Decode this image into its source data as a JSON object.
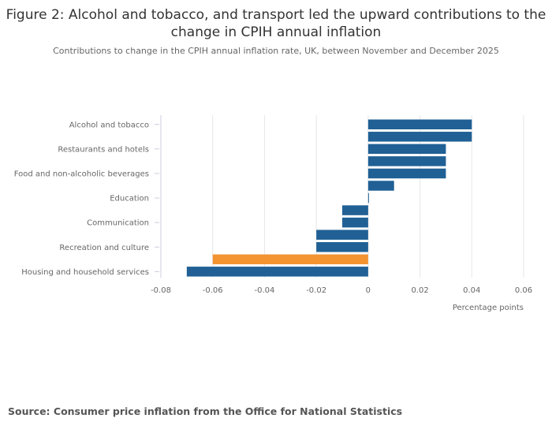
{
  "title": "Figure 2: Alcohol and tobacco, and transport led the upward contributions to the change in CPIH annual inflation",
  "subtitle": "Contributions to change in the CPIH annual inflation rate, UK, between November and December 2025",
  "source": "Source: Consumer price inflation from the Office for National Statistics",
  "chart_data": {
    "type": "bar",
    "orientation": "horizontal",
    "categories": [
      "Alcohol and tobacco",
      "",
      "Restaurants and hotels",
      "",
      "Food and non-alcoholic beverages",
      "",
      "Education",
      "",
      "Communication",
      "",
      "Recreation and culture",
      "",
      "Housing and household services"
    ],
    "values": [
      0.04,
      0.04,
      0.03,
      0.03,
      0.03,
      0.01,
      0.0,
      -0.01,
      -0.01,
      -0.02,
      -0.02,
      -0.06,
      -0.07
    ],
    "highlight_index": 11,
    "colors": {
      "bar": "#206095",
      "highlight": "#f39431"
    },
    "xlabel": "Percentage points",
    "xlim": [
      -0.08,
      0.06
    ],
    "xticks": [
      "-0.08",
      "-0.06",
      "-0.04",
      "-0.02",
      "0",
      "0.02",
      "0.04",
      "0.06"
    ],
    "grid": true
  }
}
